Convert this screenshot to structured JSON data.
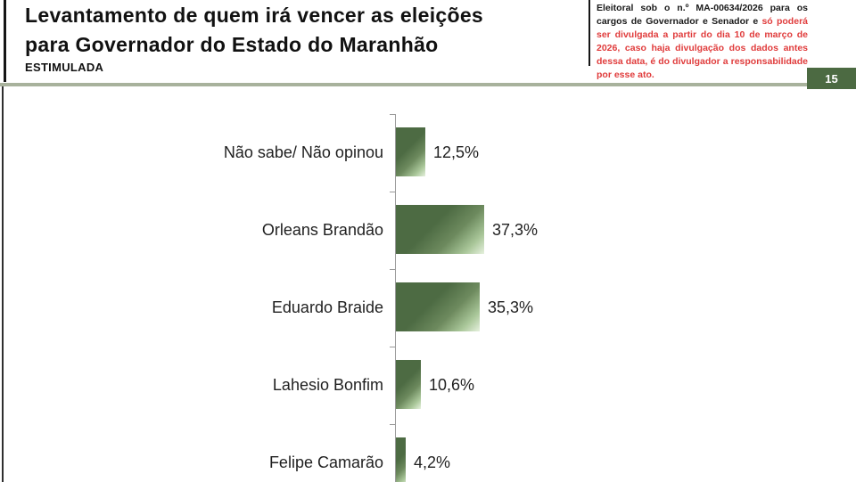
{
  "header": {
    "title_line1": "Levantamento de quem irá vencer as eleições",
    "title_line2": "para Governador do Estado do Maranhão",
    "subtitle": "ESTIMULADA",
    "page_number": "15",
    "disclaimer_black": "Eleitoral sob o n.º MA-00634/2026 para os cargos de Governador e Senador e ",
    "disclaimer_red": "só poderá ser divulgada a partir do dia 10 de março de 2026, caso haja divulgação dos dados antes dessa data, é do divulgador a responsabilidade por esse ato."
  },
  "chart_data": {
    "type": "bar",
    "orientation": "horizontal",
    "title": "Levantamento de quem irá vencer as eleições para Governador do Estado do Maranhão — ESTIMULADA",
    "categories": [
      "Não sabe/ Não opinou",
      "Orleans Brandão",
      "Eduardo Braide",
      "Lahesio Bonfim",
      "Felipe Camarão"
    ],
    "values": [
      12.5,
      37.3,
      35.3,
      10.6,
      4.2
    ],
    "value_labels": [
      "12,5%",
      "37,3%",
      "35,3%",
      "10,6%",
      "4,2%"
    ],
    "xlabel": "",
    "ylabel": "",
    "xlim": [
      0,
      40
    ],
    "grid": false,
    "legend": false,
    "bar_color_dark": "#4d6b43",
    "bar_color_light": "#e6f1de"
  },
  "colors": {
    "accent_green": "#4c6a42",
    "separator_olive": "#a8b29c",
    "disclaimer_red": "#e03c3c",
    "axis_gray": "#9a9a9a"
  }
}
